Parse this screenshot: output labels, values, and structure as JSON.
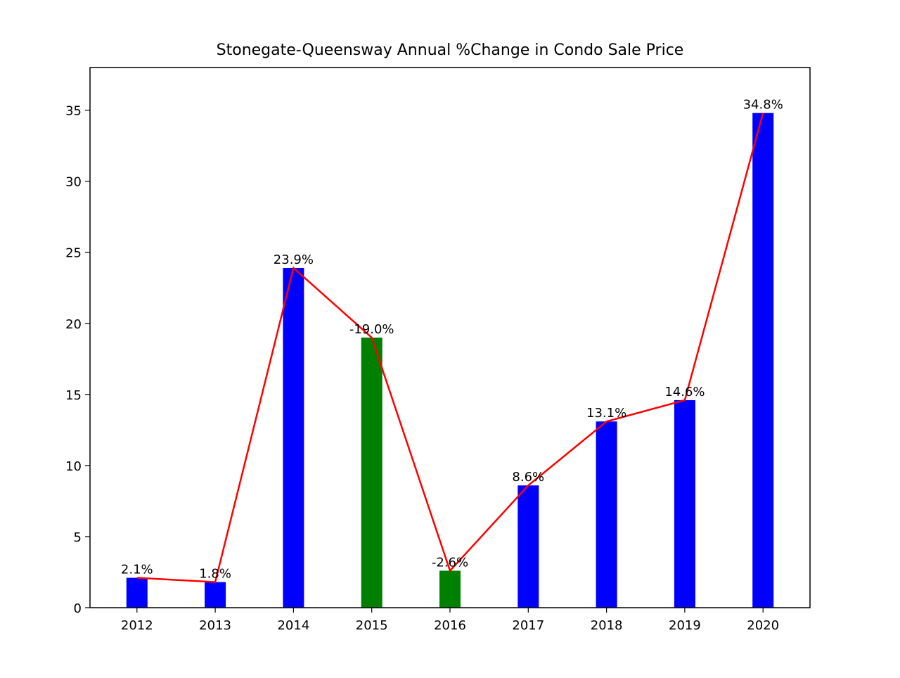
{
  "chart_data": {
    "type": "bar",
    "title": "Stonegate-Queensway Annual %Change in Condo Sale Price",
    "xlabel": "",
    "ylabel": "",
    "categories": [
      "2012",
      "2013",
      "2014",
      "2015",
      "2016",
      "2017",
      "2018",
      "2019",
      "2020"
    ],
    "values": [
      2.1,
      1.8,
      23.9,
      19.0,
      2.6,
      8.6,
      13.1,
      14.6,
      34.8
    ],
    "bar_labels": [
      "2.1%",
      "1.8%",
      "23.9%",
      "-19.0%",
      "-2.6%",
      "8.6%",
      "13.1%",
      "14.6%",
      "34.8%"
    ],
    "bar_colors": [
      "#0000ff",
      "#0000ff",
      "#0000ff",
      "#008000",
      "#008000",
      "#0000ff",
      "#0000ff",
      "#0000ff",
      "#0000ff"
    ],
    "line_overlay": {
      "color": "#ff0000",
      "values": [
        2.1,
        1.8,
        23.9,
        19.0,
        2.6,
        8.6,
        13.1,
        14.6,
        34.8
      ]
    },
    "yticks": [
      0,
      5,
      10,
      15,
      20,
      25,
      30,
      35
    ],
    "ylim": [
      0,
      38
    ],
    "grid": false,
    "legend": "none"
  }
}
